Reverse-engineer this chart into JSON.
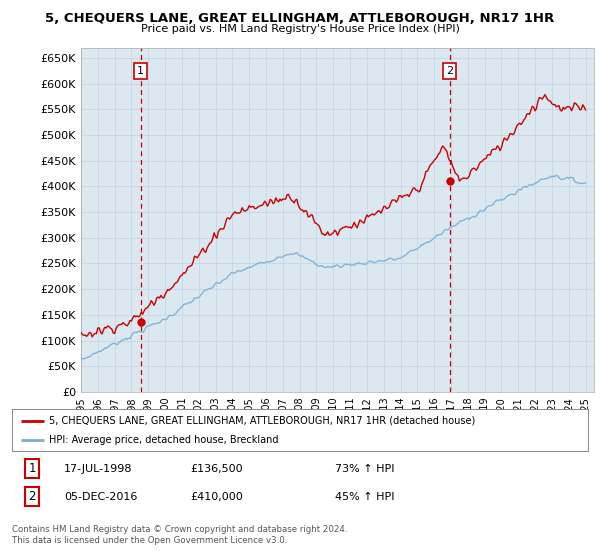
{
  "title": "5, CHEQUERS LANE, GREAT ELLINGHAM, ATTLEBOROUGH, NR17 1HR",
  "subtitle": "Price paid vs. HM Land Registry's House Price Index (HPI)",
  "yticks": [
    0,
    50000,
    100000,
    150000,
    200000,
    250000,
    300000,
    350000,
    400000,
    450000,
    500000,
    550000,
    600000,
    650000
  ],
  "ytick_labels": [
    "£0",
    "£50K",
    "£100K",
    "£150K",
    "£200K",
    "£250K",
    "£300K",
    "£350K",
    "£400K",
    "£450K",
    "£500K",
    "£550K",
    "£600K",
    "£650K"
  ],
  "ylim": [
    0,
    670000
  ],
  "sale1_date": 1998.54,
  "sale1_price": 136500,
  "sale2_date": 2016.92,
  "sale2_price": 410000,
  "line1_color": "#cc0000",
  "line2_color": "#7bafd4",
  "dot_color": "#cc0000",
  "vline_color": "#cc0000",
  "grid_color": "#c8d8e8",
  "bg_color": "#ffffff",
  "plot_bg_color": "#dce8f0",
  "legend_line1": "5, CHEQUERS LANE, GREAT ELLINGHAM, ATTLEBOROUGH, NR17 1HR (detached house)",
  "legend_line2": "HPI: Average price, detached house, Breckland",
  "annotation1_date": "17-JUL-1998",
  "annotation1_price": "£136,500",
  "annotation1_hpi": "73% ↑ HPI",
  "annotation2_date": "05-DEC-2016",
  "annotation2_price": "£410,000",
  "annotation2_hpi": "45% ↑ HPI",
  "footer": "Contains HM Land Registry data © Crown copyright and database right 2024.\nThis data is licensed under the Open Government Licence v3.0.",
  "xmin": 1995,
  "xmax": 2025.5
}
